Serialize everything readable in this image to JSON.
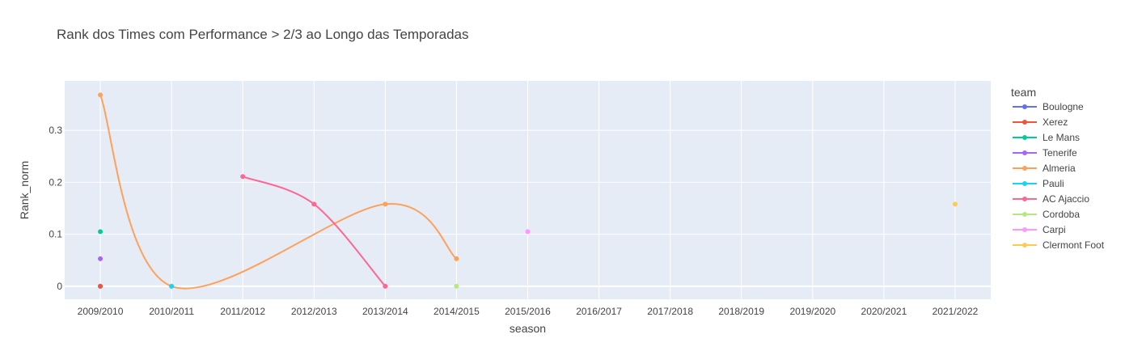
{
  "chart_data": {
    "type": "line",
    "title": "Rank dos Times com Performance > 2/3 ao Longo das Temporadas",
    "xlabel": "season",
    "ylabel": "Rank_norm",
    "legend_title": "team",
    "legend_position": "right",
    "grid": true,
    "categories": [
      "2009/2010",
      "2010/2011",
      "2011/2012",
      "2012/2013",
      "2013/2014",
      "2014/2015",
      "2015/2016",
      "2016/2017",
      "2017/2018",
      "2018/2019",
      "2019/2020",
      "2020/2021",
      "2021/2022"
    ],
    "ylim": [
      -0.025,
      0.395
    ],
    "yticks": [
      0,
      0.1,
      0.2,
      0.3
    ],
    "ytick_labels": [
      "0",
      "0.1",
      "0.2",
      "0.3"
    ],
    "series": [
      {
        "name": "Boulogne",
        "color": "#636efa",
        "points": [
          [
            "2009/2010",
            0.0
          ]
        ]
      },
      {
        "name": "Xerez",
        "color": "#EF553B",
        "points": [
          [
            "2009/2010",
            0.0
          ]
        ]
      },
      {
        "name": "Le Mans",
        "color": "#00cc96",
        "points": [
          [
            "2009/2010",
            0.105
          ]
        ]
      },
      {
        "name": "Tenerife",
        "color": "#ab63fa",
        "points": [
          [
            "2009/2010",
            0.053
          ]
        ]
      },
      {
        "name": "Almeria",
        "color": "#FFA15A",
        "points": [
          [
            "2009/2010",
            0.368
          ],
          [
            "2010/2011",
            0.0
          ],
          [
            "2013/2014",
            0.158
          ],
          [
            "2014/2015",
            0.053
          ]
        ]
      },
      {
        "name": "Pauli",
        "color": "#19d3f3",
        "points": [
          [
            "2010/2011",
            0.0
          ]
        ]
      },
      {
        "name": "AC Ajaccio",
        "color": "#FF6692",
        "points": [
          [
            "2011/2012",
            0.211
          ],
          [
            "2012/2013",
            0.158
          ],
          [
            "2013/2014",
            0.0
          ]
        ]
      },
      {
        "name": "Cordoba",
        "color": "#B6E880",
        "points": [
          [
            "2014/2015",
            0.0
          ]
        ]
      },
      {
        "name": "Carpi",
        "color": "#FF97FF",
        "points": [
          [
            "2015/2016",
            0.105
          ]
        ]
      },
      {
        "name": "Clermont Foot",
        "color": "#FECB52",
        "points": [
          [
            "2021/2022",
            0.158
          ]
        ]
      }
    ]
  }
}
